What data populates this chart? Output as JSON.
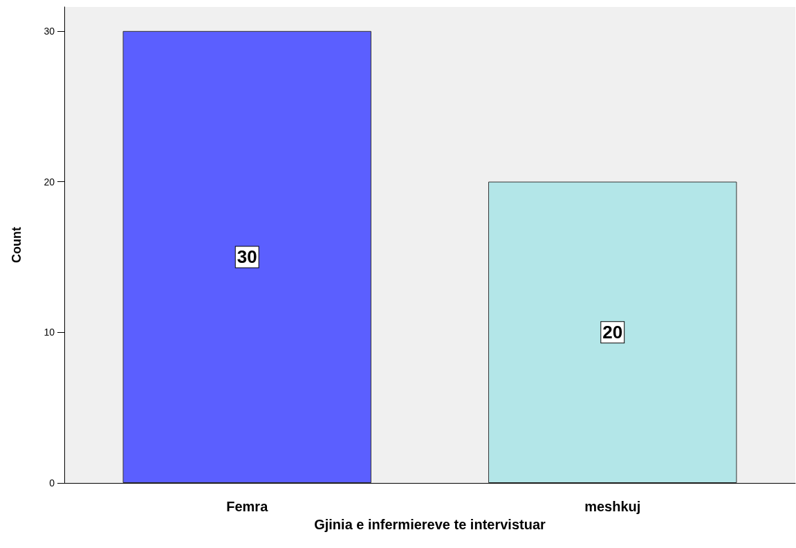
{
  "chart_data": {
    "type": "bar",
    "xlabel": "Gjinia e infermiereve te intervistuar",
    "ylabel": "Count",
    "categories": [
      "Femra",
      "meshkuj"
    ],
    "values": [
      30,
      20
    ],
    "colors": [
      "#5b5fff",
      "#b3e6e8"
    ],
    "ylim": [
      0,
      31.6
    ],
    "yticks": [
      0,
      10,
      20,
      30
    ],
    "grid": false,
    "data_labels": true
  }
}
